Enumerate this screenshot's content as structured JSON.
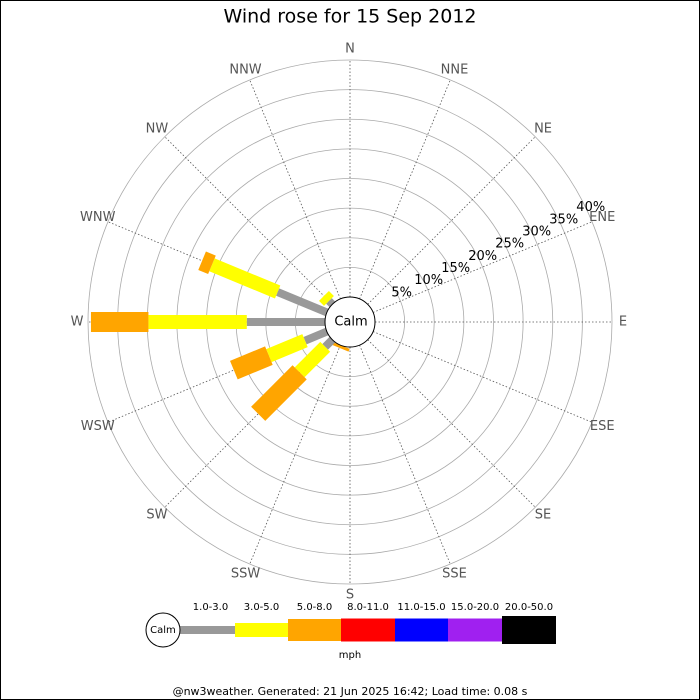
{
  "chart_data": {
    "type": "windrose",
    "title": "Wind rose for 15 Sep 2012",
    "directions": [
      "N",
      "NNE",
      "NE",
      "ENE",
      "E",
      "ESE",
      "SE",
      "SSE",
      "S",
      "SSW",
      "SW",
      "WSW",
      "W",
      "WNW",
      "NW",
      "NNW"
    ],
    "calm_label": "Calm",
    "rlim": [
      0,
      40
    ],
    "rticks": [
      {
        "value": 5,
        "label": "5%"
      },
      {
        "value": 10,
        "label": "10%"
      },
      {
        "value": 15,
        "label": "15%"
      },
      {
        "value": 20,
        "label": "20%"
      },
      {
        "value": 25,
        "label": "25%"
      },
      {
        "value": 30,
        "label": "30%"
      },
      {
        "value": 35,
        "label": "35%"
      },
      {
        "value": 40,
        "label": "40%"
      }
    ],
    "series": [
      {
        "name": "1.0-3.0",
        "color": "#999999",
        "values": [
          0,
          0,
          0,
          0,
          0,
          0,
          0,
          0,
          0,
          0,
          1.7,
          4,
          13.2,
          9,
          0.8,
          0
        ]
      },
      {
        "name": "3.0-5.0",
        "color": "#ffff00",
        "values": [
          0,
          0,
          0,
          0,
          0,
          0,
          0,
          0,
          0,
          0,
          6.1,
          6.6,
          16.6,
          12,
          1.2,
          0
        ]
      },
      {
        "name": "5.0-8.0",
        "color": "#ffa500",
        "values": [
          0,
          0,
          0,
          0,
          0,
          0,
          0,
          0,
          0,
          0.5,
          9.9,
          6.4,
          9.7,
          1.8,
          0,
          0
        ]
      },
      {
        "name": "8.0-11.0",
        "color": "#ff0000",
        "values": [
          0,
          0,
          0,
          0,
          0,
          0,
          0,
          0,
          0,
          0,
          0,
          0,
          0,
          0,
          0,
          0
        ]
      },
      {
        "name": "11.0-15.0",
        "color": "#0000ff",
        "values": [
          0,
          0,
          0,
          0,
          0,
          0,
          0,
          0,
          0,
          0,
          0,
          0,
          0,
          0,
          0,
          0
        ]
      },
      {
        "name": "15.0-20.0",
        "color": "#a020f0",
        "values": [
          0,
          0,
          0,
          0,
          0,
          0,
          0,
          0,
          0,
          0,
          0,
          0,
          0,
          0,
          0,
          0
        ]
      },
      {
        "name": "20.0-50.0",
        "color": "#000000",
        "values": [
          0,
          0,
          0,
          0,
          0,
          0,
          0,
          0,
          0,
          0,
          0,
          0,
          0,
          0,
          0,
          0
        ]
      }
    ],
    "unit": "mph",
    "footer": "@nw3weather. Generated: 21 Jun 2025 16:42; Load time: 0.08 s"
  }
}
